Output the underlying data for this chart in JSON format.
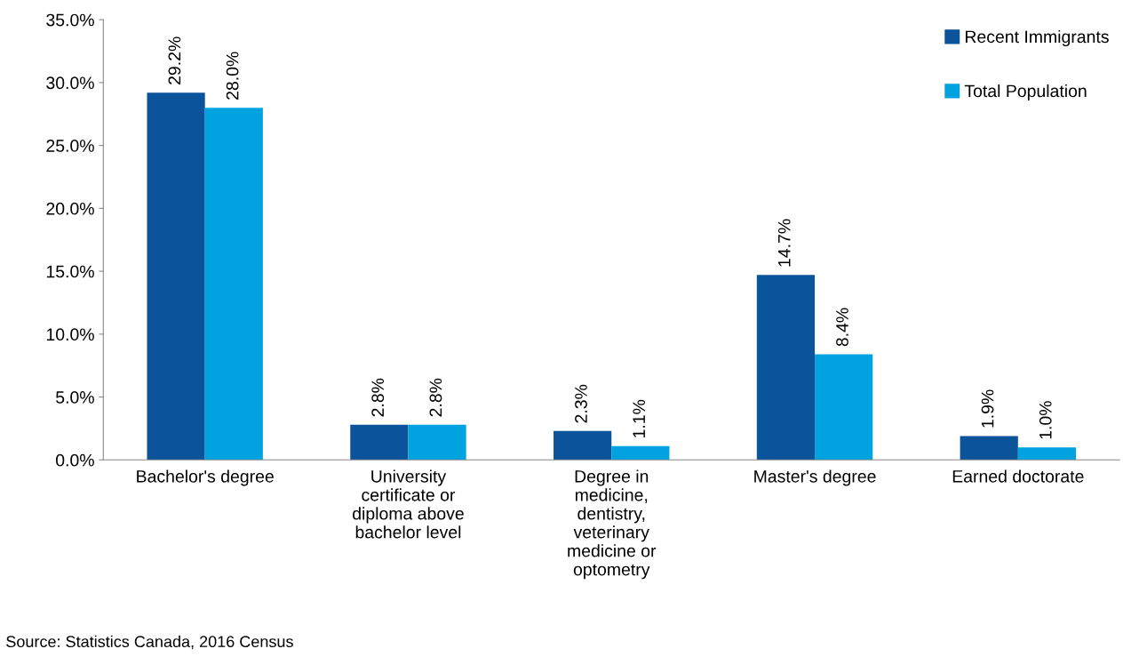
{
  "chart_data": {
    "type": "bar",
    "categories": [
      "Bachelor's degree",
      "University\ncertificate or\ndiploma above\nbachelor level",
      "Degree in\nmedicine,\ndentistry,\nveterinary\nmedicine or\noptometry",
      "Master's degree",
      "Earned doctorate"
    ],
    "series": [
      {
        "name": "Recent Immigrants",
        "color": "#0b539b",
        "values": [
          29.2,
          2.8,
          2.3,
          14.7,
          1.9
        ],
        "value_labels": [
          "29.2%",
          "2.8%",
          "2.3%",
          "14.7%",
          "1.9%"
        ]
      },
      {
        "name": "Total Population",
        "color": "#00a3e0",
        "values": [
          28.0,
          2.8,
          1.1,
          8.4,
          1.0
        ],
        "value_labels": [
          "28.0%",
          "2.8%",
          "1.1%",
          "8.4%",
          "1.0%"
        ]
      }
    ],
    "ylim": [
      0,
      35
    ],
    "yticks": [
      {
        "value": 0,
        "label": "0.0%"
      },
      {
        "value": 5,
        "label": "5.0%"
      },
      {
        "value": 10,
        "label": "10.0%"
      },
      {
        "value": 15,
        "label": "15.0%"
      },
      {
        "value": 20,
        "label": "20.0%"
      },
      {
        "value": 25,
        "label": "25.0%"
      },
      {
        "value": 30,
        "label": "30.0%"
      },
      {
        "value": 35,
        "label": "35.0%"
      }
    ],
    "grid": false,
    "legend": "top right",
    "annotations": [
      "Source: Statistics Canada, 2016 Census"
    ]
  }
}
